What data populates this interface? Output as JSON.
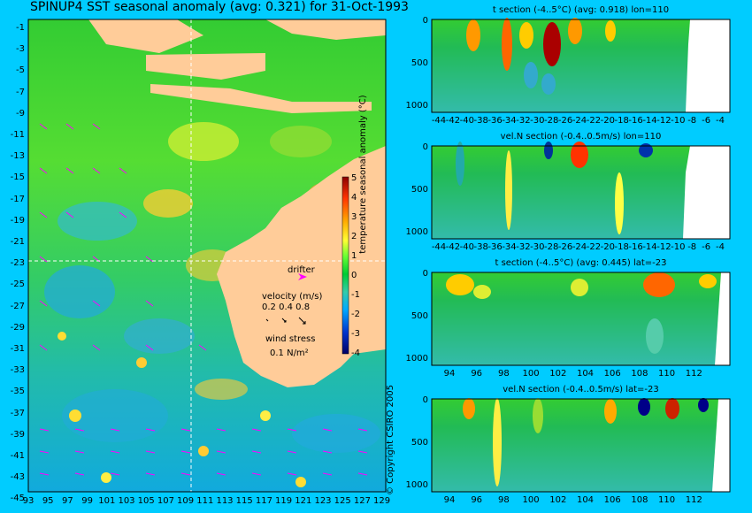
{
  "title": "SPINUP4 SST seasonal anomaly (avg: 0.321) for 31-Oct-1993",
  "colors": {
    "background": "#00ccff",
    "land": "#ffcc99",
    "drifter": "#ff00ff",
    "vectors": "#ff00ff",
    "crosshair": "#ffffff"
  },
  "map": {
    "lat_ticks": [
      "-1",
      "-3",
      "-5",
      "-7",
      "-9",
      "-11",
      "-13",
      "-15",
      "-17",
      "-19",
      "-21",
      "-23",
      "-25",
      "-27",
      "-29",
      "-31",
      "-33",
      "-35",
      "-37",
      "-39",
      "-41",
      "-43",
      "-45"
    ],
    "lon_ticks": [
      "93",
      "95",
      "97",
      "99",
      "101",
      "103",
      "105",
      "107",
      "109",
      "111",
      "113",
      "115",
      "117",
      "119",
      "121",
      "123",
      "125",
      "127",
      "129"
    ],
    "crosshair": {
      "lat": -23,
      "lon": 110
    },
    "colorbar": {
      "label": "temperature seasonal anomaly (°C)",
      "ticks": [
        "5",
        "4",
        "3",
        "2",
        "1",
        "0",
        "-1",
        "-2",
        "-3",
        "-4"
      ]
    },
    "legend": {
      "drifter_label": "drifter",
      "velocity_title": "velocity (m/s)",
      "velocity_values": "0.2 0.4 0.8",
      "wind_title": "wind stress",
      "wind_value": "0.1 N/m²"
    }
  },
  "sections": [
    {
      "title": "t section (-4..5°C) (avg: 0.918) lon=110",
      "depth_ticks": [
        "0",
        "500",
        "1000"
      ],
      "x_ticks": [
        "-44",
        "-42",
        "-40",
        "-38",
        "-36",
        "-34",
        "-32",
        "-30",
        "-28",
        "-26",
        "-24",
        "-22",
        "-20",
        "-18",
        "-16",
        "-14",
        "-12",
        "-10",
        "-8",
        "-6",
        "-4"
      ]
    },
    {
      "title": "vel.N section (-0.4..0.5m/s) lon=110",
      "depth_ticks": [
        "0",
        "500",
        "1000"
      ],
      "x_ticks": [
        "-44",
        "-42",
        "-40",
        "-38",
        "-36",
        "-34",
        "-32",
        "-30",
        "-28",
        "-26",
        "-24",
        "-22",
        "-20",
        "-18",
        "-16",
        "-14",
        "-12",
        "-10",
        "-8",
        "-6",
        "-4"
      ]
    },
    {
      "title": "t section (-4..5°C) (avg: 0.445) lat=-23",
      "depth_ticks": [
        "0",
        "500",
        "1000"
      ],
      "x_ticks": [
        "94",
        "96",
        "98",
        "100",
        "102",
        "104",
        "106",
        "108",
        "110",
        "112"
      ]
    },
    {
      "title": "vel.N section (-0.4..0.5m/s) lat=-23",
      "depth_ticks": [
        "0",
        "500",
        "1000"
      ],
      "x_ticks": [
        "94",
        "96",
        "98",
        "100",
        "102",
        "104",
        "106",
        "108",
        "110",
        "112"
      ]
    }
  ],
  "copyright": "© Copyright CSIRO 2005"
}
